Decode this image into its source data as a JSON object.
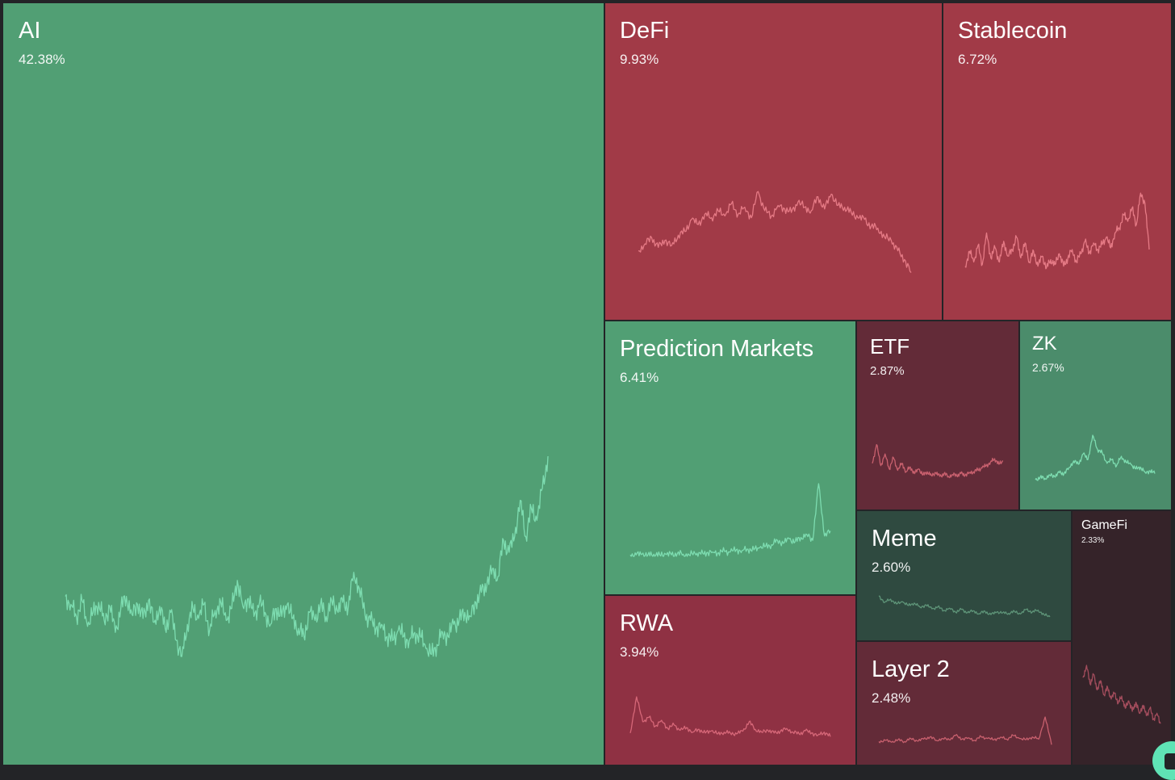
{
  "chart_data": {
    "type": "treemap",
    "tiles": [
      {
        "id": "ai",
        "name": "AI",
        "share": "42.38%",
        "trend": "up",
        "color": "#519f74",
        "line": "#7ddcb0",
        "spark": [
          0.3,
          0.26,
          0.2,
          0.28,
          0.15,
          0.22,
          0.27,
          0.18,
          0.25,
          0.12,
          0.24,
          0.3,
          0.21,
          0.26,
          0.19,
          0.28,
          0.17,
          0.25,
          0.14,
          0.22,
          0.08,
          0.0,
          0.16,
          0.24,
          0.19,
          0.26,
          0.13,
          0.23,
          0.27,
          0.18,
          0.24,
          0.38,
          0.25,
          0.29,
          0.2,
          0.27,
          0.22,
          0.16,
          0.24,
          0.2,
          0.26,
          0.19,
          0.14,
          0.1,
          0.22,
          0.18,
          0.26,
          0.2,
          0.28,
          0.23,
          0.27,
          0.25,
          0.42,
          0.34,
          0.21,
          0.18,
          0.14,
          0.16,
          0.1,
          0.08,
          0.13,
          0.1,
          0.08,
          0.12,
          0.1,
          0.04,
          0.01,
          0.06,
          0.12,
          0.1,
          0.16,
          0.18,
          0.22,
          0.2,
          0.27,
          0.32,
          0.36,
          0.44,
          0.4,
          0.58,
          0.52,
          0.6,
          0.78,
          0.6,
          0.74,
          0.68,
          0.84,
          1.0
        ]
      },
      {
        "id": "defi",
        "name": "DeFi",
        "share": "9.93%",
        "trend": "down",
        "color": "#a13a47",
        "line": "#e57a85",
        "spark": [
          0.3,
          0.38,
          0.45,
          0.34,
          0.42,
          0.36,
          0.48,
          0.52,
          0.66,
          0.6,
          0.72,
          0.68,
          0.76,
          0.7,
          0.84,
          0.72,
          0.8,
          0.68,
          0.98,
          0.76,
          0.7,
          0.82,
          0.78,
          0.74,
          0.86,
          0.8,
          0.76,
          0.92,
          0.78,
          0.95,
          0.82,
          0.8,
          0.74,
          0.68,
          0.66,
          0.58,
          0.56,
          0.46,
          0.42,
          0.3,
          0.2,
          0.05
        ]
      },
      {
        "id": "stablecoin",
        "name": "Stablecoin",
        "share": "6.72%",
        "trend": "down",
        "color": "#a13a47",
        "line": "#e57a85",
        "spark": [
          0.1,
          0.28,
          0.15,
          0.35,
          0.12,
          0.5,
          0.2,
          0.32,
          0.15,
          0.4,
          0.22,
          0.3,
          0.45,
          0.2,
          0.38,
          0.15,
          0.28,
          0.1,
          0.22,
          0.08,
          0.18,
          0.12,
          0.25,
          0.1,
          0.2,
          0.3,
          0.15,
          0.25,
          0.4,
          0.26,
          0.38,
          0.3,
          0.36,
          0.45,
          0.32,
          0.5,
          0.56,
          0.72,
          0.64,
          0.8,
          0.6,
          0.98,
          0.86,
          0.3
        ]
      },
      {
        "id": "prediction",
        "name": "Prediction Markets",
        "share": "6.41%",
        "trend": "up",
        "color": "#519f74",
        "line": "#7ddcb0",
        "spark": [
          0.02,
          0.02,
          0.03,
          0.02,
          0.03,
          0.02,
          0.03,
          0.02,
          0.04,
          0.03,
          0.02,
          0.04,
          0.03,
          0.05,
          0.06,
          0.05,
          0.07,
          0.06,
          0.09,
          0.08,
          0.1,
          0.09,
          0.12,
          0.14,
          0.16,
          0.22,
          0.18,
          0.24,
          0.2,
          0.26,
          0.3,
          0.22,
          1.0,
          0.28,
          0.35
        ]
      },
      {
        "id": "etf",
        "name": "ETF",
        "share": "2.87%",
        "trend": "down",
        "color": "#632b38",
        "line": "#c8606e",
        "spark": [
          0.4,
          0.8,
          0.35,
          0.6,
          0.28,
          0.52,
          0.25,
          0.4,
          0.22,
          0.32,
          0.18,
          0.28,
          0.15,
          0.22,
          0.14,
          0.2,
          0.12,
          0.18,
          0.12,
          0.16,
          0.14,
          0.18,
          0.15,
          0.2,
          0.22,
          0.26,
          0.3,
          0.35,
          0.42,
          0.5,
          0.38,
          0.45
        ]
      },
      {
        "id": "zk",
        "name": "ZK",
        "share": "2.67%",
        "trend": "up",
        "color": "#4b8c6b",
        "line": "#7ddcb0",
        "spark": [
          0.05,
          0.1,
          0.08,
          0.15,
          0.12,
          0.2,
          0.18,
          0.3,
          0.45,
          0.38,
          0.6,
          0.48,
          1.0,
          0.7,
          0.62,
          0.4,
          0.48,
          0.35,
          0.55,
          0.42,
          0.38,
          0.28,
          0.32,
          0.2,
          0.24,
          0.18
        ]
      },
      {
        "id": "meme",
        "name": "Meme",
        "share": "2.60%",
        "trend": "down",
        "color": "#2f4a40",
        "line": "#5e9478",
        "spark": [
          0.8,
          0.6,
          0.7,
          0.55,
          0.62,
          0.5,
          0.58,
          0.45,
          0.52,
          0.4,
          0.46,
          0.35,
          0.42,
          0.3,
          0.38,
          0.28,
          0.34,
          0.25,
          0.32,
          0.22,
          0.3,
          0.28,
          0.26,
          0.32,
          0.24,
          0.38,
          0.3,
          0.36,
          0.22,
          0.15
        ]
      },
      {
        "id": "gamefi",
        "name": "GameFi",
        "share": "2.33%",
        "trend": "down",
        "color": "#352329",
        "line": "#a24c5c",
        "spark": [
          0.8,
          1.0,
          0.7,
          0.85,
          0.6,
          0.75,
          0.52,
          0.64,
          0.45,
          0.55,
          0.38,
          0.5,
          0.3,
          0.42,
          0.25,
          0.4,
          0.22,
          0.35,
          0.18,
          0.3,
          0.12,
          0.22,
          0.05
        ]
      },
      {
        "id": "rwa",
        "name": "RWA",
        "share": "3.94%",
        "trend": "down",
        "color": "#8f3143",
        "line": "#d66778",
        "spark": [
          0.2,
          1.0,
          0.45,
          0.55,
          0.35,
          0.48,
          0.3,
          0.38,
          0.26,
          0.32,
          0.22,
          0.28,
          0.2,
          0.25,
          0.18,
          0.22,
          0.2,
          0.18,
          0.24,
          0.45,
          0.28,
          0.22,
          0.26,
          0.2,
          0.24,
          0.3,
          0.22,
          0.18,
          0.25,
          0.2,
          0.15,
          0.22,
          0.12
        ]
      },
      {
        "id": "layer2",
        "name": "Layer 2",
        "share": "2.48%",
        "trend": "down",
        "color": "#632b38",
        "line": "#c8606e",
        "spark": [
          0.2,
          0.24,
          0.18,
          0.26,
          0.2,
          0.3,
          0.22,
          0.28,
          0.35,
          0.24,
          0.3,
          0.26,
          0.4,
          0.28,
          0.32,
          0.24,
          0.36,
          0.3,
          0.26,
          0.34,
          0.28,
          0.4,
          0.3,
          0.26,
          0.35,
          0.28,
          1.0,
          0.1
        ]
      }
    ]
  }
}
